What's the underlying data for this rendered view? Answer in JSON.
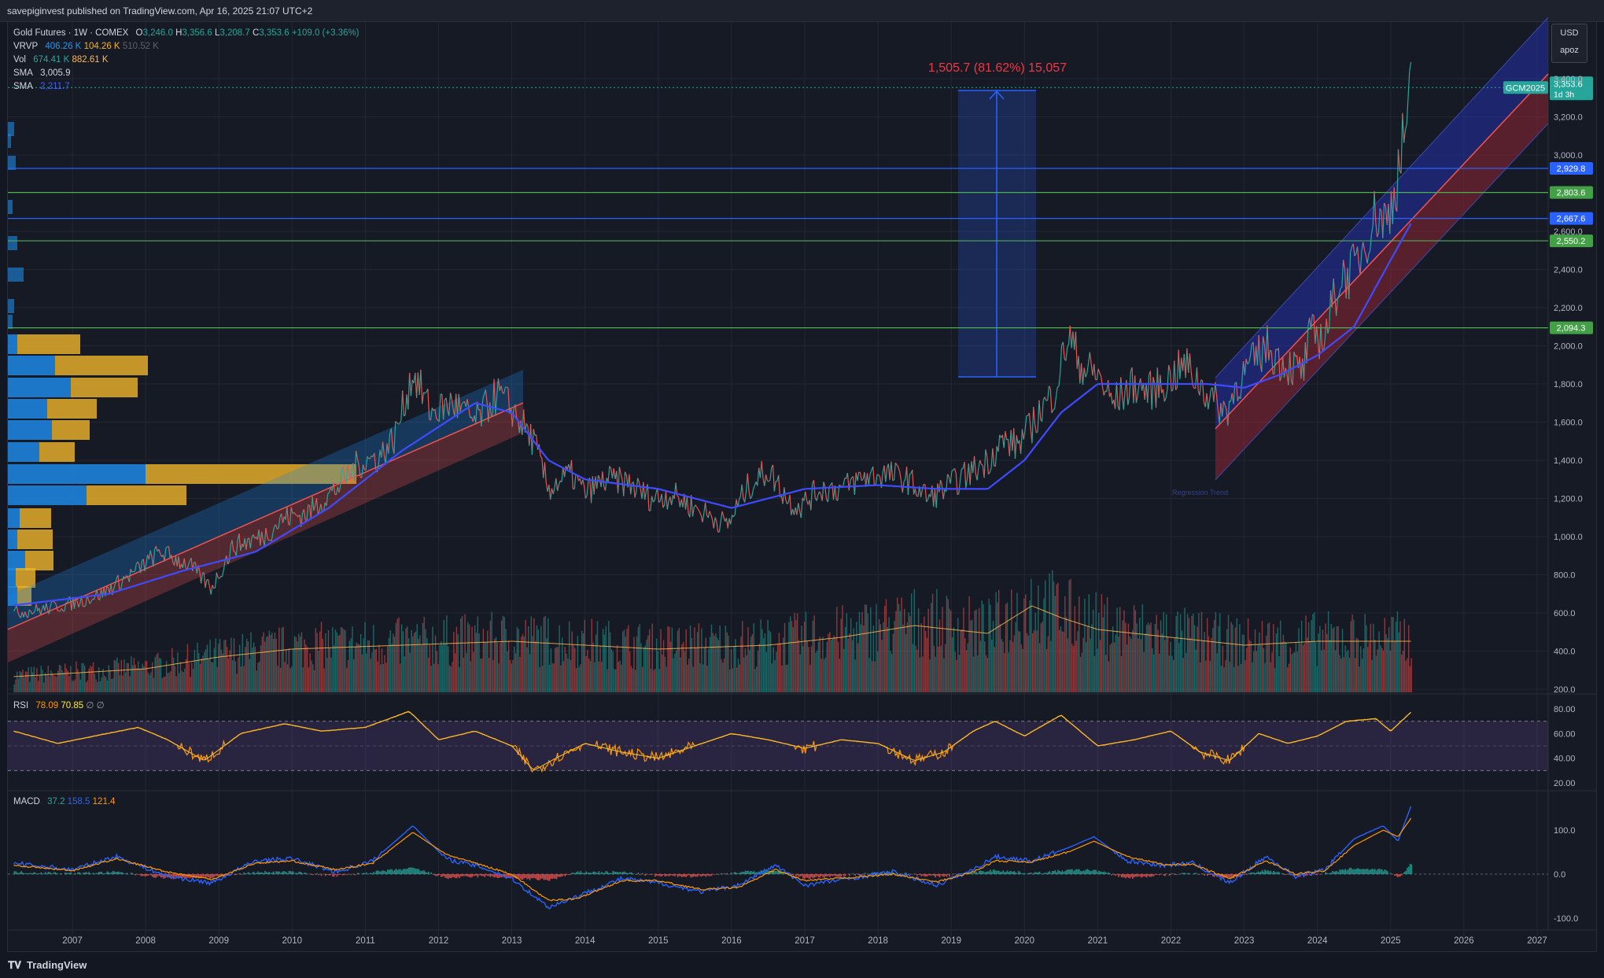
{
  "header": {
    "published": "savepiginvest published on TradingView.com, Apr 16, 2025 21:07 UTC+2"
  },
  "legend": {
    "title": "Gold Futures · 1W · COMEX",
    "ohlc": {
      "o_label": "O",
      "o": "3,246.0",
      "h_label": "H",
      "h": "3,356.6",
      "l_label": "L",
      "l": "3,208.7",
      "c_label": "C",
      "c": "3,353.6",
      "chg": "+109.0 (+3.36%)"
    },
    "vrvp": {
      "label": "VRVP",
      "up": "406.26 K",
      "down": "104.26 K",
      "total": "510.52 K"
    },
    "vol": {
      "label": "Vol",
      "v1": "674.41 K",
      "v2": "882.61 K"
    },
    "sma1": {
      "label": "SMA",
      "value": "3,005.9"
    },
    "sma2": {
      "label": "SMA",
      "value": "2,211.7"
    }
  },
  "rsi_legend": {
    "label": "RSI",
    "v1": "78.09",
    "v2": "70.85",
    "v3": "∅",
    "v4": "∅"
  },
  "macd_legend": {
    "label": "MACD",
    "v1": "37.2",
    "v2": "158.5",
    "v3": "121.4"
  },
  "currency": {
    "ccy": "USD",
    "unit": "apoz"
  },
  "measure_label": "1,505.7 (81.62%) 15,057",
  "last_price": {
    "symbol": "GCM2025",
    "price": "3,353.6",
    "countdown": "1d 3h"
  },
  "footer": {
    "brand": "TradingView"
  },
  "colors": {
    "background": "#161a25",
    "grid": "#232734",
    "up": "#26a69a",
    "down": "#ef5350",
    "sma_blue": "#3f4bff",
    "sma_pink": "#b03ec8",
    "rsi": "#ff9800",
    "macd_blue": "#2962ff",
    "macd_orange": "#ff9800",
    "level_green": "#4caf50",
    "level_blue": "#2962ff"
  },
  "chart_data": [
    {
      "type": "line",
      "title": "Gold Futures · 1W · COMEX",
      "x_ticks": [
        "2007",
        "2008",
        "2009",
        "2010",
        "2011",
        "2012",
        "2013",
        "2014",
        "2015",
        "2016",
        "2017",
        "2018",
        "2019",
        "2020",
        "2021",
        "2022",
        "2023",
        "2024",
        "2025",
        "2026",
        "2027"
      ],
      "y_ticks": [
        "3,400.0",
        "3,200.0",
        "3,000.0",
        "2,600.0",
        "2,400.0",
        "2,200.0",
        "2,000.0",
        "1,800.0",
        "1,600.0",
        "1,400.0",
        "1,200.0",
        "1,000.0",
        "800.0",
        "600.0",
        "400.0",
        "200.0"
      ],
      "ylim": [
        200,
        3500
      ],
      "series": [
        {
          "name": "",
          "x": [
            2006.2,
            2006.6,
            2007.0,
            2007.4,
            2007.8,
            2008.2,
            2008.6,
            2008.9,
            2009.2,
            2009.6,
            2009.9,
            2010.2,
            2010.6,
            2010.9,
            2011.2,
            2011.4,
            2011.65,
            2011.9,
            2012.2,
            2012.5,
            2012.8,
            2013.0,
            2013.3,
            2013.5,
            2013.8,
            2014.0,
            2014.3,
            2014.6,
            2014.9,
            2015.2,
            2015.5,
            2015.95,
            2016.2,
            2016.5,
            2016.8,
            2016.95,
            2017.2,
            2017.5,
            2017.8,
            2018.1,
            2018.4,
            2018.7,
            2018.9,
            2019.2,
            2019.5,
            2019.7,
            2019.9,
            2020.1,
            2020.2,
            2020.4,
            2020.6,
            2020.8,
            2021.0,
            2021.2,
            2021.5,
            2021.7,
            2021.9,
            2022.2,
            2022.5,
            2022.75,
            2022.9,
            2023.1,
            2023.3,
            2023.5,
            2023.8,
            2023.9,
            2024.1,
            2024.3,
            2024.5,
            2024.8,
            2024.95,
            2025.1,
            2025.2,
            2025.29
          ],
          "y": [
            600,
            620,
            650,
            700,
            800,
            920,
            850,
            730,
            950,
            1000,
            1100,
            1120,
            1250,
            1380,
            1420,
            1520,
            1860,
            1650,
            1700,
            1600,
            1750,
            1670,
            1500,
            1250,
            1330,
            1230,
            1300,
            1280,
            1200,
            1220,
            1150,
            1060,
            1250,
            1350,
            1180,
            1160,
            1250,
            1250,
            1310,
            1330,
            1300,
            1200,
            1250,
            1320,
            1400,
            1500,
            1480,
            1580,
            1650,
            1750,
            2050,
            1880,
            1850,
            1700,
            1800,
            1760,
            1800,
            1900,
            1750,
            1650,
            1800,
            1900,
            2000,
            1920,
            1860,
            2050,
            2050,
            2350,
            2400,
            2700,
            2650,
            2900,
            3150,
            3353.6
          ]
        },
        {
          "name": "",
          "x": [
            2006.2,
            2007.5,
            2008.5,
            2009.5,
            2010.5,
            2011.5,
            2012.5,
            2013.0,
            2013.5,
            2014.0,
            2015.0,
            2016.0,
            2017.0,
            2018.0,
            2018.8,
            2019.5,
            2020.0,
            2020.5,
            2021.0,
            2021.5,
            2022.0,
            2022.5,
            2023.0,
            2023.5,
            2024.0,
            2024.5,
            2025.0,
            2025.29
          ],
          "y": [
            640,
            700,
            820,
            920,
            1150,
            1450,
            1700,
            1650,
            1400,
            1300,
            1250,
            1150,
            1250,
            1270,
            1250,
            1250,
            1400,
            1650,
            1800,
            1800,
            1800,
            1800,
            1780,
            1850,
            1950,
            2100,
            2450,
            2650
          ]
        }
      ]
    },
    {
      "type": "line",
      "title": "RSI",
      "y_ticks": [
        "80.00",
        "60.00",
        "40.00",
        "20.00"
      ],
      "ylim": [
        15,
        85
      ],
      "series": [
        {
          "name": "",
          "x": [
            2006.2,
            2006.8,
            2007.3,
            2007.9,
            2008.3,
            2008.8,
            2009.3,
            2009.9,
            2010.4,
            2011.0,
            2011.6,
            2012.0,
            2012.5,
            2013.0,
            2013.3,
            2013.6,
            2014.0,
            2014.5,
            2015.0,
            2015.5,
            2016.0,
            2016.5,
            2017.0,
            2017.5,
            2018.0,
            2018.5,
            2018.9,
            2019.3,
            2019.6,
            2020.0,
            2020.5,
            2021.0,
            2021.5,
            2022.0,
            2022.4,
            2022.8,
            2023.2,
            2023.6,
            2024.0,
            2024.4,
            2024.8,
            2025.0,
            2025.29
          ],
          "y": [
            62,
            52,
            58,
            65,
            55,
            38,
            60,
            68,
            62,
            65,
            78,
            55,
            62,
            50,
            30,
            40,
            52,
            45,
            40,
            50,
            60,
            55,
            48,
            55,
            52,
            38,
            45,
            62,
            70,
            58,
            75,
            50,
            55,
            62,
            45,
            38,
            60,
            52,
            58,
            70,
            72,
            62,
            78
          ]
        }
      ]
    },
    {
      "type": "line",
      "title": "MACD",
      "y_ticks": [
        "100.0",
        "0.0",
        "-100.0"
      ],
      "ylim": [
        -110,
        170
      ],
      "series": [
        {
          "name": "",
          "x": [
            2006.2,
            2007.0,
            2007.6,
            2008.3,
            2008.9,
            2009.5,
            2010.0,
            2010.6,
            2011.1,
            2011.65,
            2012.1,
            2012.6,
            2013.0,
            2013.5,
            2013.9,
            2014.5,
            2015.0,
            2015.6,
            2016.1,
            2016.6,
            2017.0,
            2017.6,
            2018.2,
            2018.8,
            2019.3,
            2019.6,
            2020.1,
            2020.6,
            2020.95,
            2021.4,
            2021.9,
            2022.3,
            2022.8,
            2023.3,
            2023.7,
            2024.1,
            2024.5,
            2024.9,
            2025.1,
            2025.29
          ],
          "y": [
            25,
            10,
            40,
            -5,
            -20,
            30,
            35,
            5,
            30,
            110,
            35,
            15,
            -10,
            -75,
            -50,
            -10,
            -20,
            -40,
            -25,
            20,
            -25,
            -10,
            5,
            -25,
            10,
            40,
            30,
            60,
            85,
            30,
            20,
            25,
            -20,
            40,
            -5,
            10,
            80,
            110,
            75,
            160
          ]
        },
        {
          "name": "",
          "x": [
            2006.2,
            2007.0,
            2007.6,
            2008.3,
            2008.9,
            2009.5,
            2010.0,
            2010.6,
            2011.1,
            2011.65,
            2012.1,
            2012.6,
            2013.0,
            2013.5,
            2013.9,
            2014.5,
            2015.0,
            2015.6,
            2016.1,
            2016.6,
            2017.0,
            2017.6,
            2018.2,
            2018.8,
            2019.3,
            2019.6,
            2020.1,
            2020.6,
            2020.95,
            2021.4,
            2021.9,
            2022.3,
            2022.8,
            2023.3,
            2023.7,
            2024.1,
            2024.5,
            2024.9,
            2025.1,
            2025.29
          ],
          "y": [
            20,
            8,
            35,
            5,
            -12,
            25,
            30,
            10,
            25,
            95,
            45,
            20,
            0,
            -60,
            -55,
            -15,
            -15,
            -35,
            -30,
            10,
            -15,
            -8,
            0,
            -18,
            5,
            30,
            28,
            50,
            75,
            40,
            22,
            22,
            -10,
            30,
            0,
            8,
            65,
            100,
            85,
            130
          ]
        }
      ]
    }
  ],
  "price_levels": [
    {
      "value": "2,929.8",
      "color": "#2962ff"
    },
    {
      "value": "2,803.6",
      "color": "#4caf50"
    },
    {
      "value": "2,667.6",
      "color": "#2962ff"
    },
    {
      "value": "2,550.2",
      "color": "#4caf50"
    },
    {
      "value": "2,094.3",
      "color": "#4caf50"
    }
  ]
}
